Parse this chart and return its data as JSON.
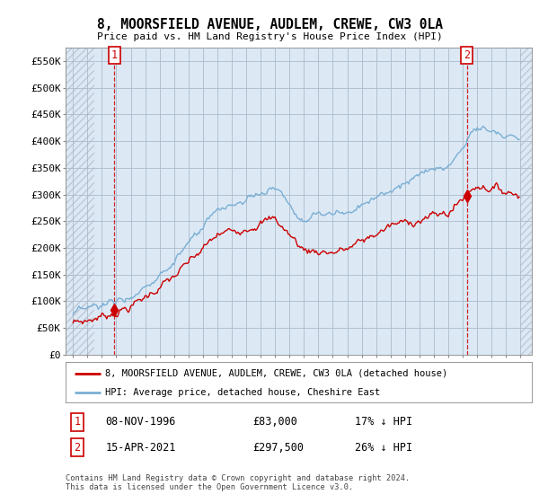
{
  "title": "8, MOORSFIELD AVENUE, AUDLEM, CREWE, CW3 0LA",
  "subtitle": "Price paid vs. HM Land Registry's House Price Index (HPI)",
  "ylim": [
    0,
    575000
  ],
  "yticks": [
    0,
    50000,
    100000,
    150000,
    200000,
    250000,
    300000,
    350000,
    400000,
    450000,
    500000,
    550000
  ],
  "ytick_labels": [
    "£0",
    "£50K",
    "£100K",
    "£150K",
    "£200K",
    "£250K",
    "£300K",
    "£350K",
    "£400K",
    "£450K",
    "£500K",
    "£550K"
  ],
  "hpi_color": "#7bafd4",
  "price_color": "#cc0000",
  "annotation_box_color": "#cc0000",
  "background_color": "#ffffff",
  "plot_bg_color": "#dce9f5",
  "hatch_color": "#c0c8d8",
  "grid_color": "#aabbcc",
  "legend_label_price": "8, MOORSFIELD AVENUE, AUDLEM, CREWE, CW3 0LA (detached house)",
  "legend_label_hpi": "HPI: Average price, detached house, Cheshire East",
  "transaction_1_label": "1",
  "transaction_1_date": "08-NOV-1996",
  "transaction_1_price": "£83,000",
  "transaction_1_hpi": "17% ↓ HPI",
  "transaction_1_x": 1996.86,
  "transaction_1_y": 83000,
  "transaction_2_label": "2",
  "transaction_2_date": "15-APR-2021",
  "transaction_2_price": "£297,500",
  "transaction_2_hpi": "26% ↓ HPI",
  "transaction_2_x": 2021.29,
  "transaction_2_y": 297500,
  "footer_text": "Contains HM Land Registry data © Crown copyright and database right 2024.\nThis data is licensed under the Open Government Licence v3.0.",
  "xmin": 1993.5,
  "xmax": 2025.8
}
